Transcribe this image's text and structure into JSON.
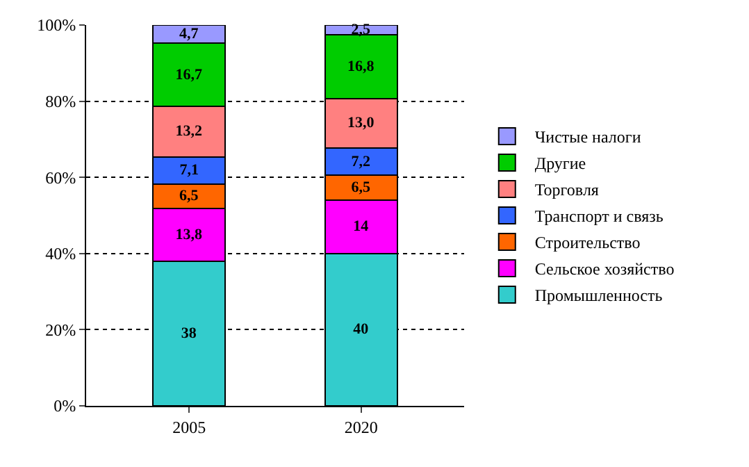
{
  "chart_data": {
    "type": "bar",
    "stacked": true,
    "categories": [
      "2005",
      "2020"
    ],
    "ylim": [
      0,
      100
    ],
    "yticks": [
      {
        "value": 0,
        "label": "0%"
      },
      {
        "value": 20,
        "label": "20%"
      },
      {
        "value": 40,
        "label": "40%"
      },
      {
        "value": 60,
        "label": "60%"
      },
      {
        "value": 80,
        "label": "80%"
      },
      {
        "value": 100,
        "label": "100%"
      }
    ],
    "grid": "y",
    "legend": "right",
    "data_labels": true,
    "series": [
      {
        "name": "Промышленность",
        "color": "#33cccc",
        "values": [
          38,
          40
        ],
        "value_labels": [
          "38",
          "40"
        ]
      },
      {
        "name": "Сельское хозяйство",
        "color": "#ff00ff",
        "values": [
          13.8,
          14
        ],
        "value_labels": [
          "13,8",
          "14"
        ]
      },
      {
        "name": "Строительство",
        "color": "#ff6600",
        "values": [
          6.5,
          6.5
        ],
        "value_labels": [
          "6,5",
          "6,5"
        ]
      },
      {
        "name": "Транспорт и связь",
        "color": "#3366ff",
        "values": [
          7.1,
          7.2
        ],
        "value_labels": [
          "7,1",
          "7,2"
        ]
      },
      {
        "name": "Торговля",
        "color": "#ff8080",
        "values": [
          13.2,
          13.0
        ],
        "value_labels": [
          "13,2",
          "13,0"
        ]
      },
      {
        "name": "Другие",
        "color": "#00cc00",
        "values": [
          16.7,
          16.8
        ],
        "value_labels": [
          "16,7",
          "16,8"
        ]
      },
      {
        "name": "Чистые налоги",
        "color": "#9999ff",
        "values": [
          4.7,
          2.5
        ],
        "value_labels": [
          "4,7",
          "2,5"
        ]
      }
    ]
  }
}
